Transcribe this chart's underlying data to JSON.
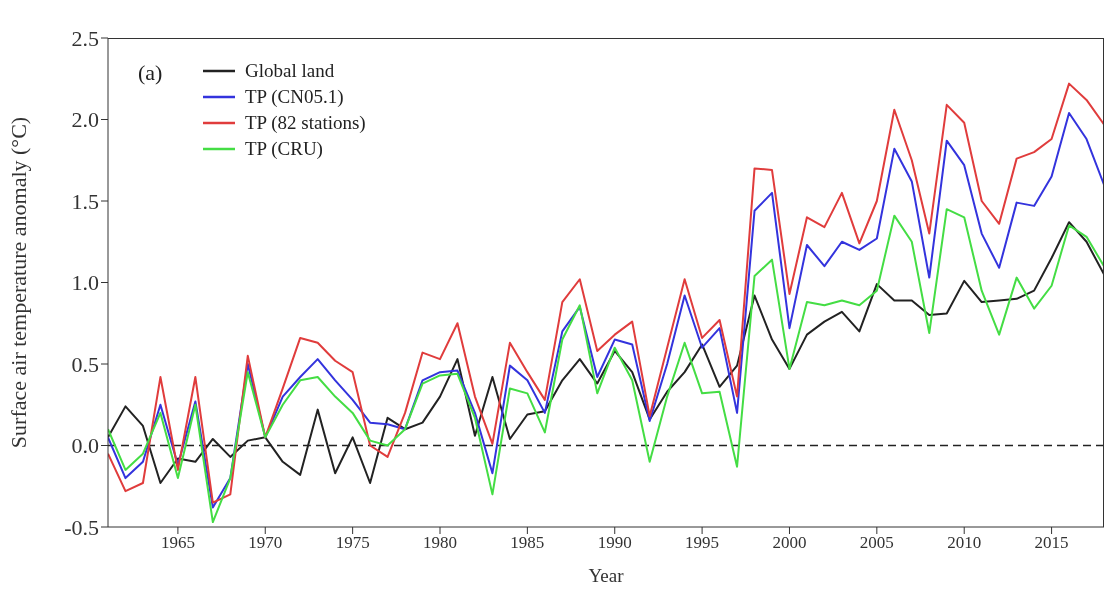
{
  "chart_data": {
    "type": "line",
    "xlabel": "Year",
    "ylabel": "Surface air temperature anomaly (°C)",
    "x": [
      1961,
      1962,
      1963,
      1964,
      1965,
      1966,
      1967,
      1968,
      1969,
      1970,
      1971,
      1972,
      1973,
      1974,
      1975,
      1976,
      1977,
      1978,
      1979,
      1980,
      1981,
      1982,
      1983,
      1984,
      1985,
      1986,
      1987,
      1988,
      1989,
      1990,
      1991,
      1992,
      1993,
      1994,
      1995,
      1996,
      1997,
      1998,
      1999,
      2000,
      2001,
      2002,
      2003,
      2004,
      2005,
      2006,
      2007,
      2008,
      2009,
      2010,
      2011,
      2012,
      2013,
      2014,
      2015,
      2016,
      2017,
      2018
    ],
    "series": [
      {
        "name": "Global land",
        "color": "#222222",
        "values": [
          0.05,
          0.24,
          0.12,
          -0.23,
          -0.08,
          -0.1,
          0.04,
          -0.07,
          0.03,
          0.05,
          -0.1,
          -0.18,
          0.22,
          -0.17,
          0.05,
          -0.23,
          0.17,
          0.1,
          0.14,
          0.3,
          0.53,
          0.06,
          0.42,
          0.04,
          0.19,
          0.21,
          0.4,
          0.53,
          0.38,
          0.58,
          0.45,
          0.16,
          0.33,
          0.45,
          0.62,
          0.36,
          0.49,
          0.92,
          0.65,
          0.47,
          0.68,
          0.76,
          0.82,
          0.7,
          0.99,
          0.89,
          0.89,
          0.8,
          0.81,
          1.01,
          0.88,
          0.89,
          0.9,
          0.95,
          1.15,
          1.37,
          1.25,
          1.05
        ]
      },
      {
        "name": "TP (CN05.1)",
        "color": "#3333dd",
        "values": [
          0.05,
          -0.2,
          -0.1,
          0.25,
          -0.12,
          0.27,
          -0.38,
          -0.2,
          0.5,
          0.05,
          0.3,
          0.42,
          0.53,
          0.4,
          0.28,
          0.14,
          0.13,
          0.1,
          0.4,
          0.45,
          0.46,
          0.2,
          -0.17,
          0.49,
          0.4,
          0.2,
          0.7,
          0.85,
          0.42,
          0.65,
          0.62,
          0.15,
          0.5,
          0.92,
          0.6,
          0.72,
          0.2,
          1.44,
          1.55,
          0.72,
          1.23,
          1.1,
          1.25,
          1.2,
          1.27,
          1.82,
          1.62,
          1.03,
          1.87,
          1.72,
          1.3,
          1.09,
          1.49,
          1.47,
          1.65,
          2.04,
          1.88,
          1.6
        ]
      },
      {
        "name": "TP (82 stations)",
        "color": "#e03c3c",
        "values": [
          -0.05,
          -0.28,
          -0.23,
          0.42,
          -0.15,
          0.42,
          -0.35,
          -0.3,
          0.55,
          0.05,
          0.35,
          0.66,
          0.63,
          0.52,
          0.45,
          0.0,
          -0.07,
          0.2,
          0.57,
          0.53,
          0.75,
          0.3,
          0.01,
          0.63,
          0.45,
          0.28,
          0.88,
          1.02,
          0.58,
          0.68,
          0.76,
          0.18,
          0.6,
          1.02,
          0.66,
          0.77,
          0.3,
          1.7,
          1.69,
          0.93,
          1.4,
          1.34,
          1.55,
          1.24,
          1.5,
          2.06,
          1.75,
          1.3,
          2.09,
          1.98,
          1.5,
          1.36,
          1.76,
          1.8,
          1.88,
          2.22,
          2.12,
          1.97
        ]
      },
      {
        "name": "TP (CRU)",
        "color": "#44dd44",
        "values": [
          0.1,
          -0.15,
          -0.05,
          0.2,
          -0.2,
          0.25,
          -0.47,
          -0.2,
          0.45,
          0.05,
          0.25,
          0.4,
          0.42,
          0.3,
          0.2,
          0.03,
          0.0,
          0.1,
          0.38,
          0.43,
          0.44,
          0.17,
          -0.3,
          0.35,
          0.32,
          0.08,
          0.65,
          0.86,
          0.32,
          0.6,
          0.4,
          -0.1,
          0.3,
          0.63,
          0.32,
          0.33,
          -0.13,
          1.04,
          1.14,
          0.47,
          0.88,
          0.86,
          0.89,
          0.86,
          0.95,
          1.41,
          1.25,
          0.69,
          1.45,
          1.4,
          0.95,
          0.68,
          1.03,
          0.84,
          0.98,
          1.35,
          1.28,
          1.1
        ]
      }
    ],
    "xlim": [
      1961,
      2018
    ],
    "xticks": [
      1965,
      1970,
      1975,
      1980,
      1985,
      1990,
      1995,
      2000,
      2005,
      2010,
      2015
    ],
    "ylim": [
      -0.5,
      2.5
    ],
    "yticks": [
      {
        "value": -0.5,
        "label": "-0.5"
      },
      {
        "value": 0,
        "label": "0.0"
      },
      {
        "value": 0.5,
        "label": "0.5"
      },
      {
        "value": 1,
        "label": "1.0"
      },
      {
        "value": 1.5,
        "label": "1.5"
      },
      {
        "value": 2,
        "label": "2.0"
      },
      {
        "value": 2.5,
        "label": "2.5"
      }
    ],
    "ref_lines": [
      {
        "axis": "y",
        "value": 0,
        "label": null,
        "color": "#222222",
        "line_style": "dashed"
      }
    ],
    "annotations": [
      "(a)"
    ],
    "grid": false,
    "legend": "top left",
    "marker": "none",
    "line_style": "solid"
  }
}
